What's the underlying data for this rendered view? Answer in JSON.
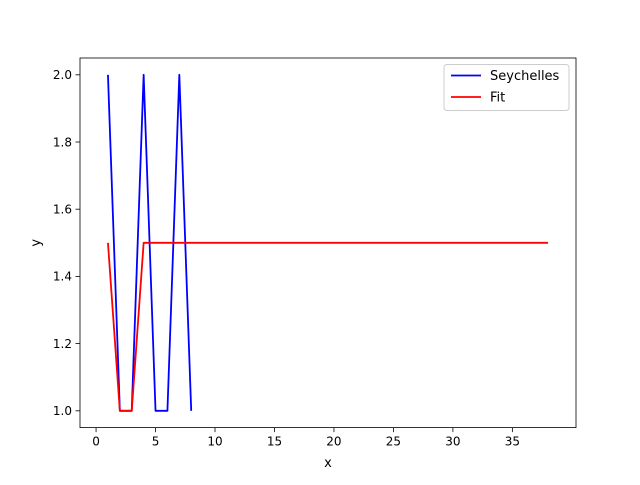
{
  "chart_data": {
    "type": "line",
    "title": "",
    "xlabel": "x",
    "ylabel": "y",
    "xlim": [
      -1.35,
      40.35
    ],
    "ylim": [
      0.95,
      2.05
    ],
    "xticks": [
      0,
      5,
      10,
      15,
      20,
      25,
      30,
      35
    ],
    "xtick_labels": [
      "0",
      "5",
      "10",
      "15",
      "20",
      "25",
      "30",
      "35"
    ],
    "yticks": [
      1.0,
      1.2,
      1.4,
      1.6,
      1.8,
      2.0
    ],
    "ytick_labels": [
      "1.0",
      "1.2",
      "1.4",
      "1.6",
      "1.8",
      "2.0"
    ],
    "grid": false,
    "legend_position": "top-right",
    "series": [
      {
        "name": "Seychelles",
        "color": "#0000ff",
        "x": [
          1,
          2,
          3,
          4,
          5,
          6,
          7,
          8
        ],
        "y": [
          2,
          1,
          1,
          2,
          1,
          1,
          2,
          1
        ]
      },
      {
        "name": "Fit",
        "color": "#ff0000",
        "x": [
          1,
          2,
          3,
          4,
          5,
          6,
          7,
          8,
          9,
          10,
          11,
          12,
          13,
          14,
          15,
          16,
          17,
          18,
          19,
          20,
          21,
          22,
          23,
          24,
          25,
          26,
          27,
          28,
          29,
          30,
          31,
          32,
          33,
          34,
          35,
          36,
          37,
          38
        ],
        "y": [
          1.5,
          1,
          1,
          1.5,
          1.5,
          1.5,
          1.5,
          1.5,
          1.5,
          1.5,
          1.5,
          1.5,
          1.5,
          1.5,
          1.5,
          1.5,
          1.5,
          1.5,
          1.5,
          1.5,
          1.5,
          1.5,
          1.5,
          1.5,
          1.5,
          1.5,
          1.5,
          1.5,
          1.5,
          1.5,
          1.5,
          1.5,
          1.5,
          1.5,
          1.5,
          1.5,
          1.5,
          1.5
        ]
      }
    ]
  }
}
